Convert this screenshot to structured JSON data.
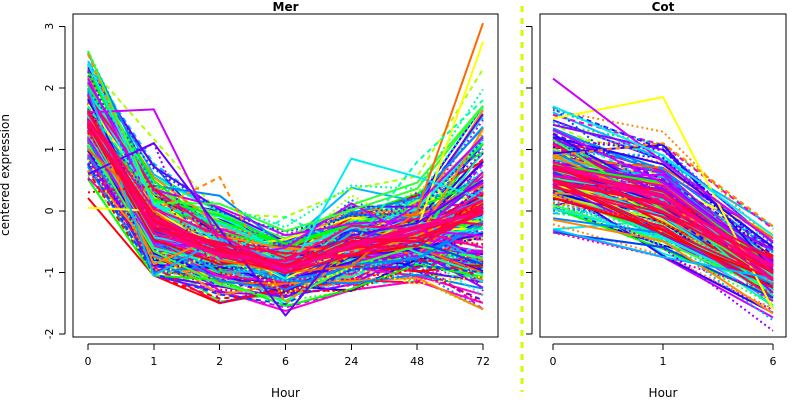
{
  "chart_data": {
    "type": "line",
    "ylabel": "centered expression",
    "palette": [
      "#00ff00",
      "#33ff33",
      "#aaff00",
      "#ffff00",
      "#ff8800",
      "#ff6600",
      "#ff0000",
      "#ff0055",
      "#ff0099",
      "#ff00cc",
      "#cc00ff",
      "#9900ff",
      "#6600ff",
      "#3300ff",
      "#0000ff",
      "#0044ff",
      "#0088ff",
      "#00bbff",
      "#00eeee",
      "#00ffaa"
    ],
    "divider_color": "#ccff00",
    "panels": [
      {
        "title": "Mer",
        "xlabel": "Hour",
        "categories": [
          "0",
          "1",
          "2",
          "6",
          "24",
          "48",
          "72"
        ],
        "ylim": [
          -2.05,
          3.2
        ],
        "yticks": [
          -2,
          -1,
          0,
          1,
          2,
          3
        ],
        "series_count": 220,
        "mean_profile": [
          1.5,
          -0.25,
          -0.65,
          -0.9,
          -0.55,
          -0.4,
          0.05
        ],
        "value_range": [
          [
            0.05,
            2.6
          ],
          [
            -1.05,
            1.65
          ],
          [
            -1.5,
            0.55
          ],
          [
            -1.7,
            -0.1
          ],
          [
            -1.3,
            0.85
          ],
          [
            -1.2,
            0.8
          ],
          [
            -1.6,
            3.05
          ]
        ],
        "series": [
          {
            "values": [
              0.05,
              0.0,
              -0.6,
              -1.1,
              -0.6,
              -0.3,
              2.75
            ]
          },
          {
            "values": [
              1.6,
              1.65,
              -0.5,
              -0.9,
              -0.6,
              0.1,
              1.2
            ]
          },
          {
            "values": [
              2.0,
              -1.05,
              -0.45,
              -0.85,
              -0.55,
              -0.3,
              0.2
            ]
          },
          {
            "values": [
              2.55,
              0.0,
              0.55,
              -1.5,
              -0.7,
              -0.4,
              0.0
            ]
          },
          {
            "values": [
              0.5,
              1.1,
              -1.5,
              -1.2,
              -0.5,
              0.3,
              -1.3
            ]
          },
          {
            "values": [
              2.4,
              0.1,
              -0.5,
              -1.1,
              0.85,
              0.55,
              0.2
            ]
          },
          {
            "values": [
              1.0,
              0.0,
              -0.8,
              -1.0,
              -0.9,
              0.0,
              3.05
            ]
          },
          {
            "values": [
              0.6,
              1.1,
              -0.3,
              -1.7,
              -0.4,
              -0.2,
              0.5
            ]
          },
          {
            "values": [
              1.7,
              0.2,
              -0.8,
              -0.1,
              -0.6,
              0.8,
              1.8
            ]
          },
          {
            "values": [
              0.3,
              0.4,
              -1.0,
              -1.3,
              -1.3,
              -0.9,
              -1.5
            ]
          }
        ]
      },
      {
        "title": "Cot",
        "xlabel": "Hour",
        "categories": [
          "0",
          "1",
          "6"
        ],
        "ylim": [
          -2.05,
          3.2
        ],
        "yticks": [],
        "series_count": 180,
        "mean_profile": [
          0.7,
          0.2,
          -1.0
        ],
        "value_range": [
          [
            -0.35,
            2.15
          ],
          [
            -0.75,
            1.85
          ],
          [
            -1.95,
            -0.25
          ]
        ],
        "series": [
          {
            "values": [
              1.5,
              1.85,
              -1.6
            ]
          },
          {
            "values": [
              2.15,
              0.8,
              -0.5
            ]
          },
          {
            "values": [
              -0.3,
              -0.75,
              -1.1
            ]
          },
          {
            "values": [
              0.9,
              1.1,
              -0.25
            ]
          },
          {
            "values": [
              0.3,
              -0.6,
              -1.95
            ]
          },
          {
            "values": [
              1.7,
              0.9,
              -0.4
            ]
          }
        ]
      }
    ]
  }
}
